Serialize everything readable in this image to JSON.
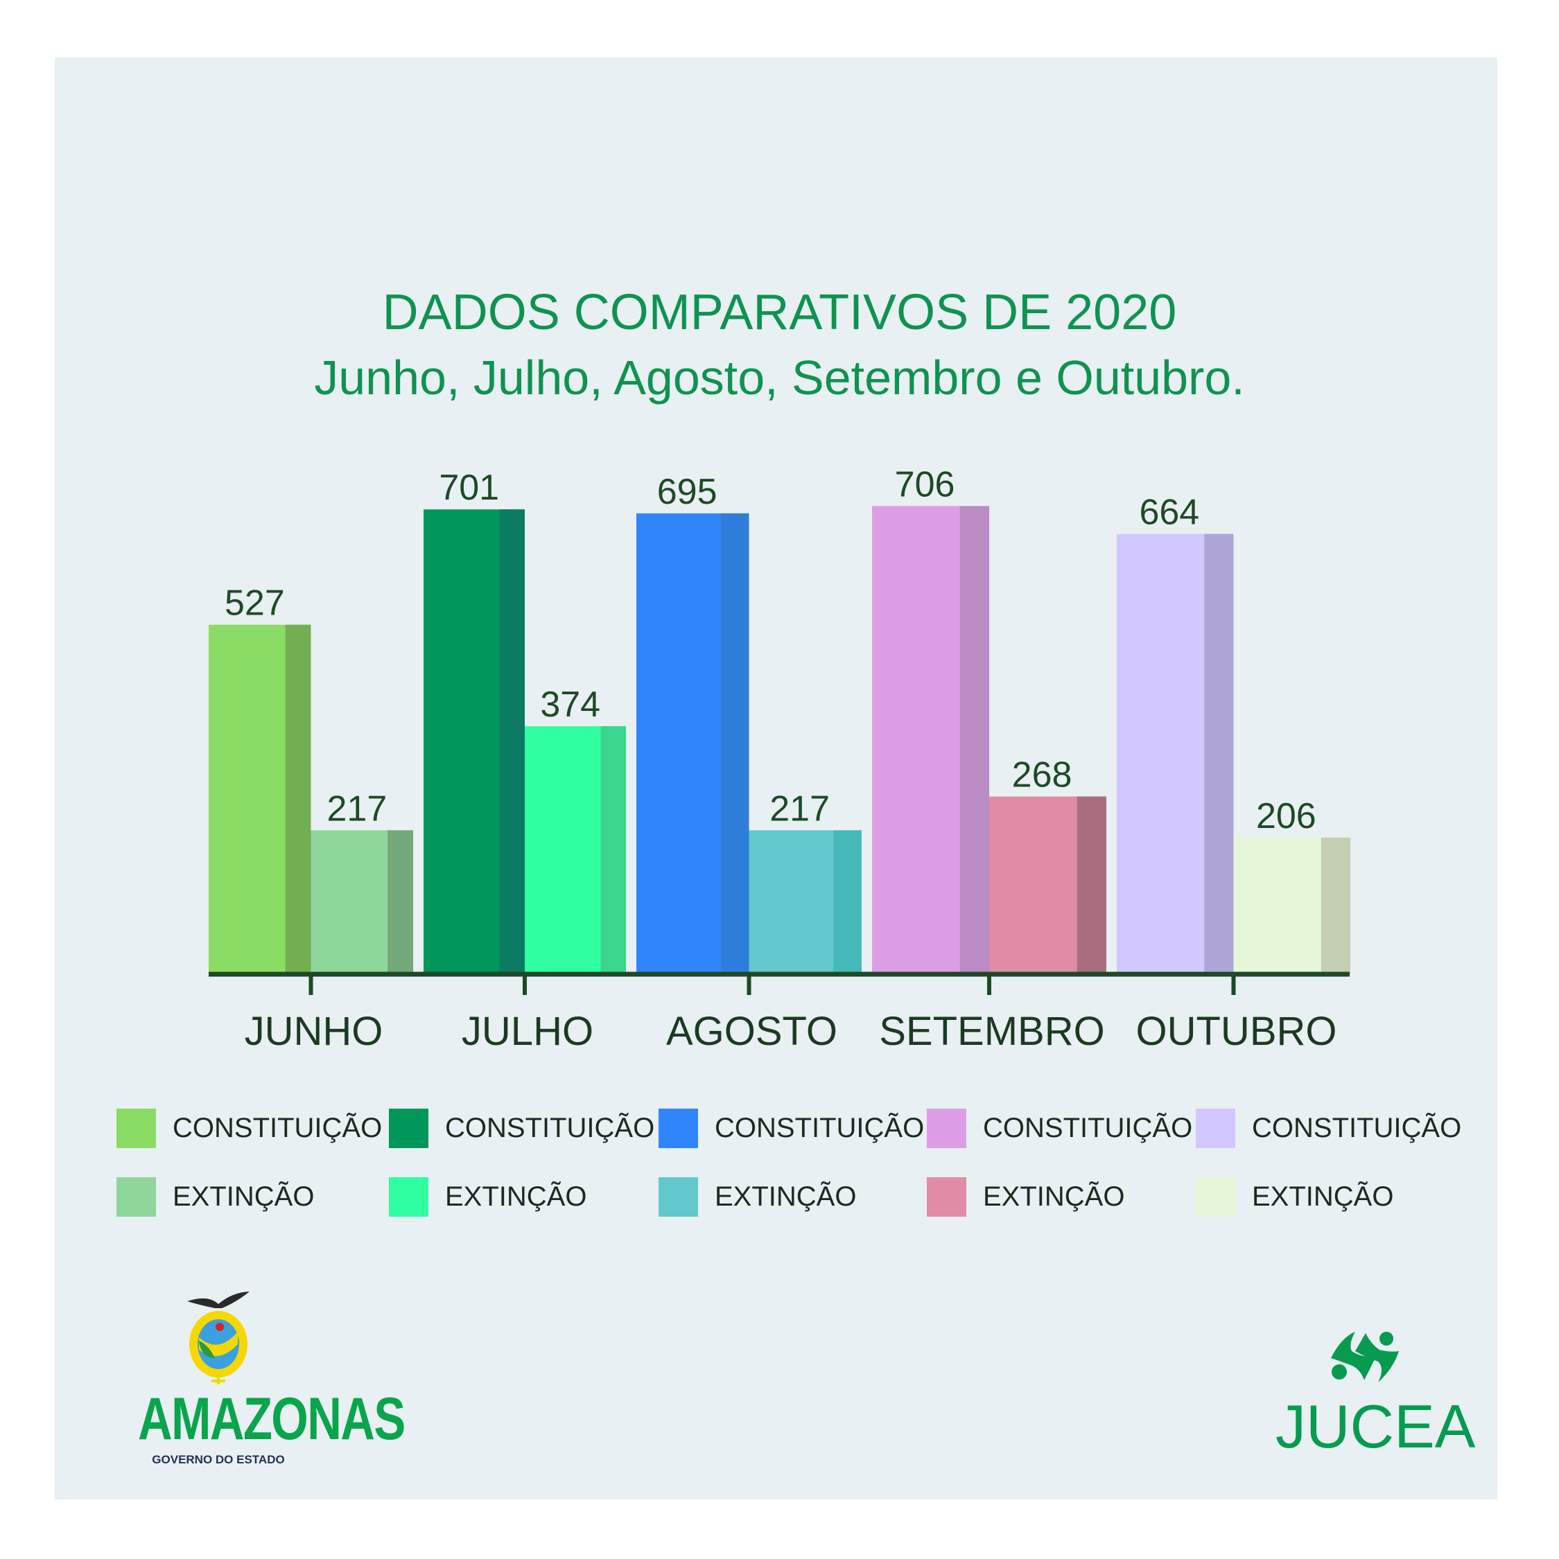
{
  "title": "DADOS COMPARATIVOS DE 2020",
  "subtitle": "Junho, Julho, Agosto, Setembro e Outubro.",
  "chart_data": {
    "type": "bar",
    "categories": [
      "JUNHO",
      "JULHO",
      "AGOSTO",
      "SETEMBRO",
      "OUTUBRO"
    ],
    "series_labels": [
      "CONSTITUIÇÃO",
      "EXTINÇÃO"
    ],
    "values": {
      "constituicao": [
        527,
        701,
        695,
        706,
        664
      ],
      "extincao": [
        217,
        374,
        217,
        268,
        206
      ]
    },
    "colors": {
      "constituicao": [
        [
          "#8bdc64",
          "#74ae52"
        ],
        [
          "#01975b",
          "#0d7b63"
        ],
        [
          "#3085fd",
          "#2f7ddb"
        ],
        [
          "#dd9ee6",
          "#bb8cc4"
        ],
        [
          "#d3c8fd",
          "#aea5d6"
        ]
      ],
      "extincao": [
        [
          "#8fd69a",
          "#72a87a"
        ],
        [
          "#2fffa0",
          "#3ad68e"
        ],
        [
          "#63c8cc",
          "#45b8b8"
        ],
        [
          "#e08ca5",
          "#a86e80"
        ],
        [
          "#e5f7d8",
          "#c3ceb3"
        ]
      ]
    },
    "legend_position": "bottom",
    "grid": false,
    "axis_color": "#1d4a25",
    "label_color": "#1d4a25"
  },
  "logos": {
    "left": {
      "name": "AMAZONAS",
      "sub": "GOVERNO DO ESTADO"
    },
    "right": {
      "name": "JUCEA"
    }
  }
}
